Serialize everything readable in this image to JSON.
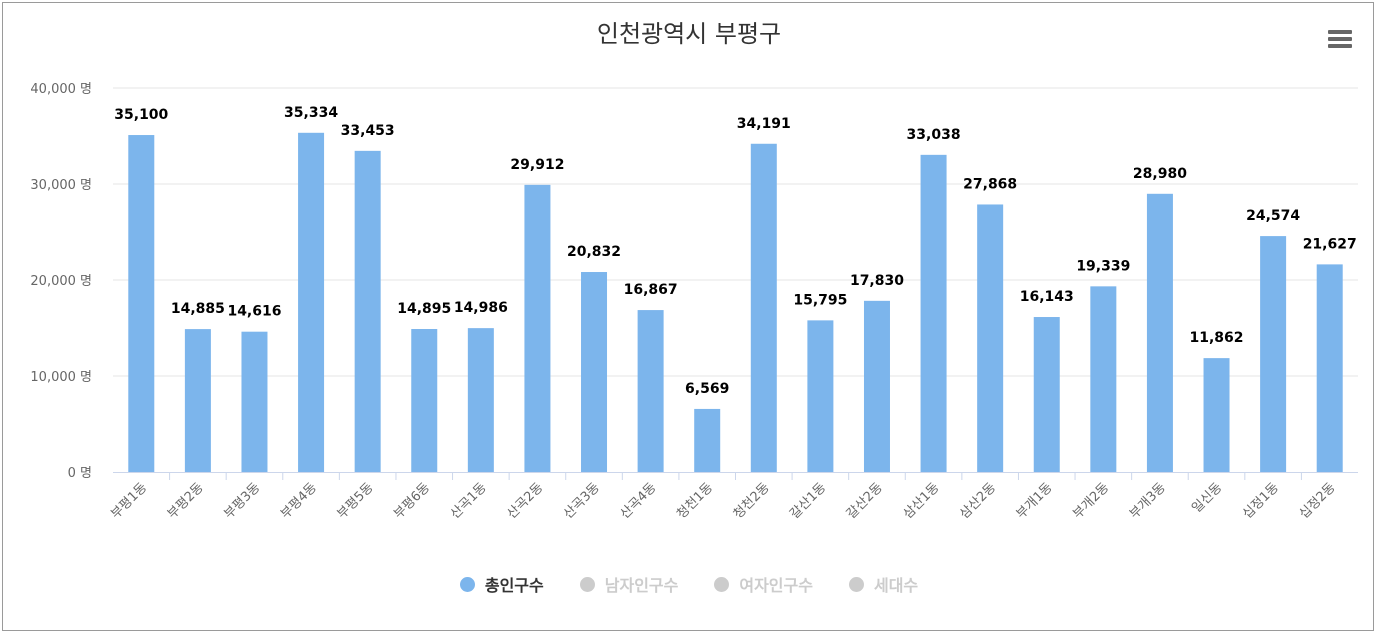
{
  "chart_data": {
    "type": "bar",
    "title": "인천광역시 부평구",
    "categories": [
      "부평1동",
      "부평2동",
      "부평3동",
      "부평4동",
      "부평5동",
      "부평6동",
      "산곡1동",
      "산곡2동",
      "산곡3동",
      "산곡4동",
      "청천1동",
      "청천2동",
      "갈산1동",
      "갈산2동",
      "삼산1동",
      "삼산2동",
      "부개1동",
      "부개2동",
      "부개3동",
      "일신동",
      "십정1동",
      "십정2동"
    ],
    "series": [
      {
        "name": "총인구수",
        "color": "#7cb5ec",
        "active": true,
        "values": [
          35100,
          14885,
          14616,
          35334,
          33453,
          14895,
          14986,
          29912,
          20832,
          16867,
          6569,
          34191,
          15795,
          17830,
          33038,
          27868,
          16143,
          19339,
          28980,
          11862,
          24574,
          21627
        ],
        "value_labels": [
          "35,100",
          "14,885",
          "14,616",
          "35,334",
          "33,453",
          "14,895",
          "14,986",
          "29,912",
          "20,832",
          "16,867",
          "6,569",
          "34,191",
          "15,795",
          "17,830",
          "33,038",
          "27,868",
          "16,143",
          "19,339",
          "28,980",
          "11,862",
          "24,574",
          "21,627"
        ]
      },
      {
        "name": "남자인구수",
        "active": false
      },
      {
        "name": "여자인구수",
        "active": false
      },
      {
        "name": "세대수",
        "active": false
      }
    ],
    "ylim": [
      0,
      40000
    ],
    "yticks": [
      0,
      10000,
      20000,
      30000,
      40000
    ],
    "ytick_labels": [
      "0 명",
      "10,000 명",
      "20,000 명",
      "30,000 명",
      "40,000 명"
    ],
    "grid": true,
    "legend_position": "bottom-center",
    "inactive_color": "#cccccc",
    "inactive_text_color": "#cccccc",
    "active_text_color": "#333333"
  }
}
